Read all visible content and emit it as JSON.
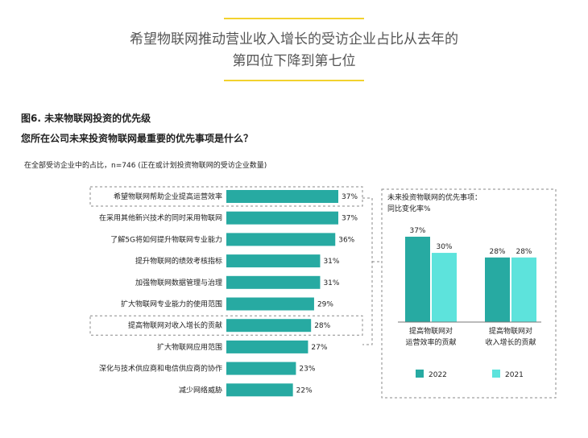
{
  "header": {
    "headline_line1": "希望物联网推动营业收入增长的受访企业占比从去年的",
    "headline_line2": "第四位下降到第七位"
  },
  "figure": {
    "title": "图6. 未来物联网投资的优先级",
    "question": "您所在公司未来投资物联网最重要的优先事项是什么？",
    "note": "在全部受访企业中的占比，n=746 (正在或计划投资物联网的受访企业数量)"
  },
  "colors": {
    "bar_2022": "#27aaa2",
    "bar_2021": "#5de3dc",
    "accent_rule": "#f2d22e",
    "dashed_border": "#8a8a8a"
  },
  "chart_data": [
    {
      "type": "bar",
      "orientation": "horizontal",
      "categories": [
        "希望物联网帮助企业提高运营效率",
        "在采用其他新兴技术的同时采用物联网",
        "了解5G将如何提升物联网专业能力",
        "提升物联网的绩效考核指标",
        "加强物联网数据管理与治理",
        "扩大物联网专业能力的使用范围",
        "提高物联网对收入增长的贡献",
        "扩大物联网应用范围",
        "深化与技术供应商和电信供应商的协作",
        "减少网络威胁"
      ],
      "values": [
        37,
        37,
        36,
        31,
        31,
        29,
        28,
        27,
        23,
        22
      ],
      "value_labels": [
        "37%",
        "37%",
        "36%",
        "31%",
        "31%",
        "29%",
        "28%",
        "27%",
        "23%",
        "22%"
      ],
      "highlighted_categories": [
        "希望物联网帮助企业提高运营效率",
        "提高物联网对收入增长的贡献"
      ],
      "xlim": [
        0,
        37
      ]
    },
    {
      "type": "bar",
      "title_line1": "未来投资物联网的优先事项：",
      "title_line2": "同比变化率%",
      "categories": [
        [
          "提高物联网对",
          "运营效率的贡献"
        ],
        [
          "提高物联网对",
          "收入增长的贡献"
        ]
      ],
      "series": [
        {
          "name": "2022",
          "values": [
            37,
            28
          ],
          "labels": [
            "37%",
            "28%"
          ]
        },
        {
          "name": "2021",
          "values": [
            30,
            28
          ],
          "labels": [
            "30%",
            "28%"
          ]
        }
      ],
      "ylim": [
        0,
        37
      ],
      "legend_position": "bottom"
    }
  ]
}
